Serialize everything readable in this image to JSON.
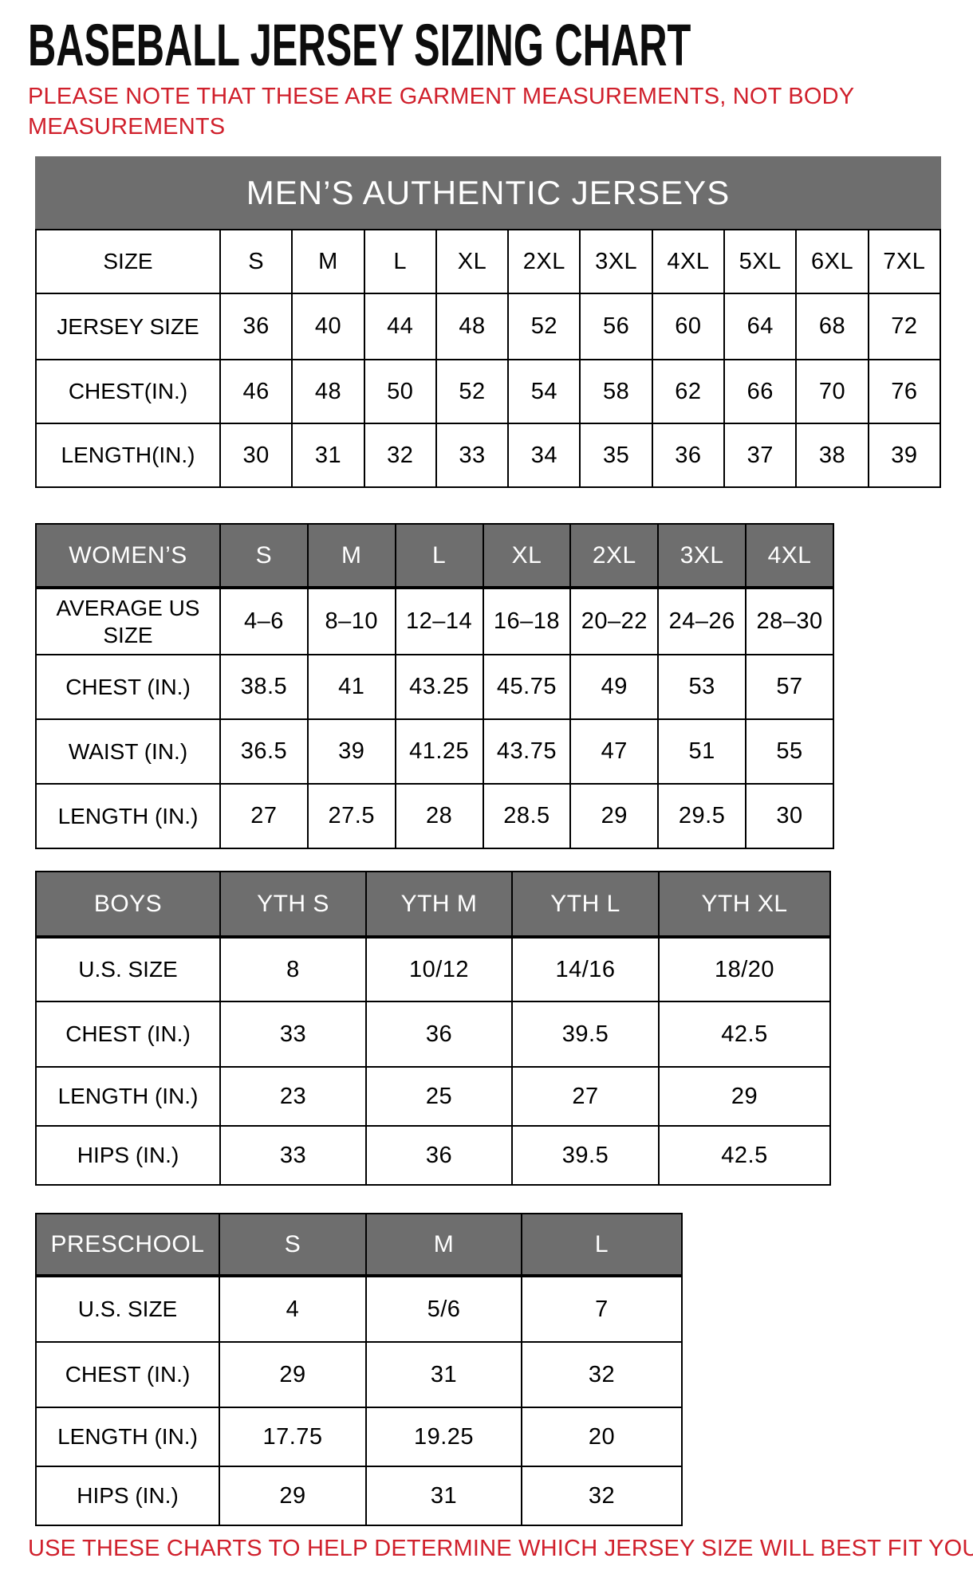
{
  "page": {
    "title": "BASEBALL JERSEY SIZING CHART",
    "note": "PLEASE NOTE THAT THESE ARE GARMENT MEASUREMENTS, NOT BODY MEASUREMENTS",
    "footer": "USE THESE CHARTS TO HELP DETERMINE WHICH JERSEY SIZE WILL BEST FIT YOU.",
    "colors": {
      "accent_red": "#d0202c",
      "header_gray": "#6e6e6e",
      "header_text": "#ffffff",
      "border_black": "#000000"
    }
  },
  "tables": {
    "men": {
      "banner": "MEN’S AUTHENTIC JERSEYS",
      "rows": [
        {
          "label": "SIZE",
          "values": [
            "S",
            "M",
            "L",
            "XL",
            "2XL",
            "3XL",
            "4XL",
            "5XL",
            "6XL",
            "7XL"
          ]
        },
        {
          "label": "JERSEY SIZE",
          "values": [
            "36",
            "40",
            "44",
            "48",
            "52",
            "56",
            "60",
            "64",
            "68",
            "72"
          ]
        },
        {
          "label": "CHEST(IN.)",
          "values": [
            "46",
            "48",
            "50",
            "52",
            "54",
            "58",
            "62",
            "66",
            "70",
            "76"
          ]
        },
        {
          "label": "LENGTH(IN.)",
          "values": [
            "30",
            "31",
            "32",
            "33",
            "34",
            "35",
            "36",
            "37",
            "38",
            "39"
          ]
        }
      ]
    },
    "women": {
      "header": {
        "label": "WOMEN’S",
        "columns": [
          "S",
          "M",
          "L",
          "XL",
          "2XL",
          "3XL",
          "4XL"
        ]
      },
      "rows": [
        {
          "label": "AVERAGE US SIZE",
          "values": [
            "4–6",
            "8–10",
            "12–14",
            "16–18",
            "20–22",
            "24–26",
            "28–30"
          ]
        },
        {
          "label": "CHEST (IN.)",
          "values": [
            "38.5",
            "41",
            "43.25",
            "45.75",
            "49",
            "53",
            "57"
          ]
        },
        {
          "label": "WAIST (IN.)",
          "values": [
            "36.5",
            "39",
            "41.25",
            "43.75",
            "47",
            "51",
            "55"
          ]
        },
        {
          "label": "LENGTH (IN.)",
          "values": [
            "27",
            "27.5",
            "28",
            "28.5",
            "29",
            "29.5",
            "30"
          ]
        }
      ]
    },
    "boys": {
      "header": {
        "label": "BOYS",
        "columns": [
          "YTH S",
          "YTH M",
          "YTH L",
          "YTH XL"
        ]
      },
      "rows": [
        {
          "label": "U.S. SIZE",
          "values": [
            "8",
            "10/12",
            "14/16",
            "18/20"
          ]
        },
        {
          "label": "CHEST (IN.)",
          "values": [
            "33",
            "36",
            "39.5",
            "42.5"
          ]
        },
        {
          "label": "LENGTH (IN.)",
          "values": [
            "23",
            "25",
            "27",
            "29"
          ]
        },
        {
          "label": "HIPS (IN.)",
          "values": [
            "33",
            "36",
            "39.5",
            "42.5"
          ]
        }
      ]
    },
    "preschool": {
      "header": {
        "label": "PRESCHOOL",
        "columns": [
          "S",
          "M",
          "L"
        ]
      },
      "rows": [
        {
          "label": "U.S. SIZE",
          "values": [
            "4",
            "5/6",
            "7"
          ]
        },
        {
          "label": "CHEST (IN.)",
          "values": [
            "29",
            "31",
            "32"
          ]
        },
        {
          "label": "LENGTH (IN.)",
          "values": [
            "17.75",
            "19.25",
            "20"
          ]
        },
        {
          "label": "HIPS (IN.)",
          "values": [
            "29",
            "31",
            "32"
          ]
        }
      ]
    }
  }
}
